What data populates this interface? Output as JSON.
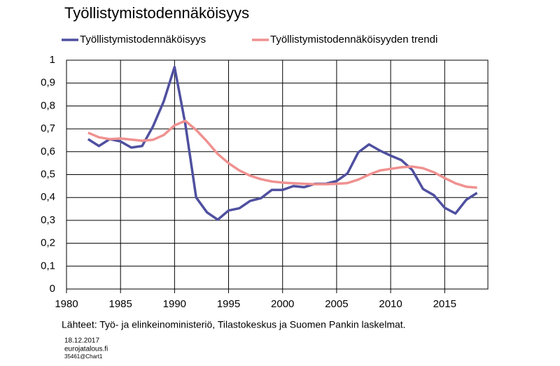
{
  "chart_data": {
    "type": "line",
    "title": "Työllistymistodennäköisyys",
    "x": [
      1982,
      1983,
      1984,
      1985,
      1986,
      1987,
      1988,
      1989,
      1990,
      1991,
      1992,
      1993,
      1994,
      1995,
      1996,
      1997,
      1998,
      1999,
      2000,
      2001,
      2002,
      2003,
      2004,
      2005,
      2006,
      2007,
      2008,
      2009,
      2010,
      2011,
      2012,
      2013,
      2014,
      2015,
      2016,
      2017,
      2018
    ],
    "series": [
      {
        "name": "Työllistymistodennäköisyys",
        "color": "#4f509f",
        "values": [
          0.655,
          0.625,
          0.655,
          0.645,
          0.618,
          0.625,
          0.71,
          0.82,
          0.97,
          0.72,
          0.4,
          0.335,
          0.303,
          0.343,
          0.353,
          0.385,
          0.397,
          0.433,
          0.433,
          0.45,
          0.445,
          0.46,
          0.46,
          0.472,
          0.505,
          0.597,
          0.632,
          0.605,
          0.583,
          0.563,
          0.52,
          0.437,
          0.41,
          0.355,
          0.33,
          0.39,
          0.42
        ]
      },
      {
        "name": "Työllistymistodennäköisyyden trendi",
        "color": "#ef9190",
        "values": [
          0.683,
          0.663,
          0.655,
          0.658,
          0.653,
          0.648,
          0.652,
          0.673,
          0.715,
          0.735,
          0.695,
          0.645,
          0.59,
          0.55,
          0.518,
          0.495,
          0.48,
          0.47,
          0.465,
          0.462,
          0.46,
          0.458,
          0.458,
          0.46,
          0.463,
          0.478,
          0.5,
          0.518,
          0.525,
          0.532,
          0.535,
          0.528,
          0.51,
          0.485,
          0.462,
          0.447,
          0.443
        ]
      }
    ],
    "xlim": [
      1980,
      2019
    ],
    "xticks": [
      1980,
      1985,
      1990,
      1995,
      2000,
      2005,
      2010,
      2015
    ],
    "ylim": [
      0,
      1
    ],
    "yticks": [
      0,
      {
        "value": 0.1,
        "label": "0,1"
      },
      {
        "value": 0.2,
        "label": "0,2"
      },
      {
        "value": 0.3,
        "label": "0,3"
      },
      {
        "value": 0.4,
        "label": "0,4"
      },
      {
        "value": 0.5,
        "label": "0,5"
      },
      {
        "value": 0.6,
        "label": "0,6"
      },
      {
        "value": 0.7,
        "label": "0,7"
      },
      {
        "value": 0.8,
        "label": "0,8"
      },
      {
        "value": 0.9,
        "label": "0,9"
      },
      1
    ],
    "grid": true,
    "source": "Lähteet: Työ- ja elinkeinoministeriö, Tilastokeskus ja Suomen Pankin laskelmat.",
    "date": "18.12.2017",
    "site": "eurojatalous.fi",
    "chart_id": "35461@Chart1"
  }
}
